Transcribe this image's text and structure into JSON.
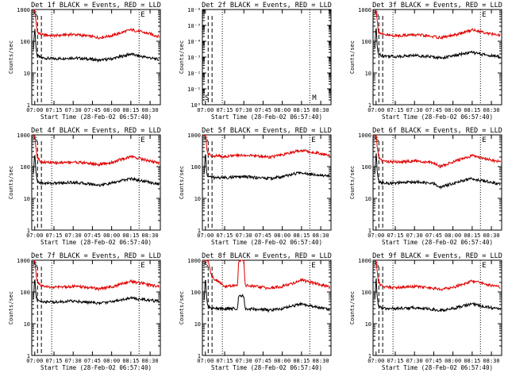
{
  "page": {
    "background": "#ffffff",
    "foreground": "#000000"
  },
  "colors": {
    "events": "#000000",
    "lld": "#e00000"
  },
  "axis": {
    "ylabel": "Counts/sec",
    "xlabel": "Start Time (28-Feb-02 06:57:40)",
    "x_ticks": [
      "07:00",
      "07:15",
      "07:30",
      "07:45",
      "08:00",
      "08:15",
      "08:30"
    ],
    "y_ticks": [
      "1",
      "10",
      "100",
      "1000"
    ],
    "y_ticks_empty": [
      "10⁰",
      "10⁻¹",
      "10⁻²",
      "10⁻³",
      "10⁻⁴",
      "10⁻⁵",
      "10⁻⁶"
    ]
  },
  "markers": {
    "left": "S",
    "right": "E",
    "right_empty": "M"
  },
  "chart_data": [
    {
      "type": "line",
      "title": "Det 1f BLACK = Events, RED = LLD",
      "xlabel": "Start Time (28-Feb-02 06:57:40)",
      "ylabel": "Counts/sec",
      "ylog": true,
      "ylim": [
        1,
        1000
      ],
      "xlim": [
        "06:57:40",
        "08:38"
      ],
      "series": [
        {
          "name": "Events",
          "color": "#000000",
          "x": [
            "06:59",
            "07:00",
            "07:01",
            "07:02",
            "07:05",
            "07:15",
            "07:30",
            "07:45",
            "07:50",
            "08:00",
            "08:10",
            "08:15",
            "08:20",
            "08:30",
            "08:37"
          ],
          "values": [
            60,
            300,
            60,
            35,
            30,
            28,
            30,
            27,
            25,
            28,
            35,
            40,
            35,
            30,
            26
          ]
        },
        {
          "name": "LLD",
          "color": "#e00000",
          "x": [
            "06:59",
            "07:00",
            "07:01",
            "07:02",
            "07:05",
            "07:15",
            "07:30",
            "07:45",
            "07:50",
            "08:00",
            "08:10",
            "08:15",
            "08:20",
            "08:30",
            "08:37"
          ],
          "values": [
            900,
            1000,
            400,
            200,
            160,
            150,
            165,
            140,
            130,
            150,
            200,
            230,
            210,
            170,
            140
          ]
        }
      ]
    },
    {
      "type": "line",
      "title": "Det 2f BLACK = Events, RED = LLD",
      "xlabel": "Start Time (28-Feb-02 06:57:40)",
      "ylabel": "Counts/sec",
      "ylog": true,
      "ylim": [
        1e-06,
        1
      ],
      "xlim": [
        "06:57:40",
        "08:38"
      ],
      "series": []
    },
    {
      "type": "line",
      "title": "Det 3f BLACK = Events, RED = LLD",
      "xlabel": "Start Time (28-Feb-02 06:57:40)",
      "ylabel": "Counts/sec",
      "ylog": true,
      "ylim": [
        1,
        1000
      ],
      "xlim": [
        "06:57:40",
        "08:38"
      ],
      "series": [
        {
          "name": "Events",
          "color": "#000000",
          "x": [
            "06:59",
            "07:00",
            "07:01",
            "07:02",
            "07:05",
            "07:15",
            "07:30",
            "07:45",
            "07:50",
            "08:00",
            "08:10",
            "08:15",
            "08:20",
            "08:30",
            "08:37"
          ],
          "values": [
            60,
            300,
            60,
            40,
            35,
            33,
            36,
            32,
            30,
            34,
            42,
            45,
            40,
            35,
            32
          ]
        },
        {
          "name": "LLD",
          "color": "#e00000",
          "x": [
            "06:59",
            "07:00",
            "07:01",
            "07:02",
            "07:05",
            "07:15",
            "07:30",
            "07:45",
            "07:50",
            "08:00",
            "08:10",
            "08:15",
            "08:20",
            "08:30",
            "08:37"
          ],
          "values": [
            900,
            1000,
            400,
            200,
            160,
            150,
            160,
            140,
            130,
            150,
            200,
            230,
            210,
            170,
            150
          ]
        }
      ]
    },
    {
      "type": "line",
      "title": "Det 4f BLACK = Events, RED = LLD",
      "xlabel": "Start Time (28-Feb-02 06:57:40)",
      "ylabel": "Counts/sec",
      "ylog": true,
      "ylim": [
        1,
        1000
      ],
      "xlim": [
        "06:57:40",
        "08:38"
      ],
      "series": [
        {
          "name": "Events",
          "color": "#000000",
          "x": [
            "06:59",
            "07:00",
            "07:01",
            "07:02",
            "07:05",
            "07:15",
            "07:30",
            "07:45",
            "07:50",
            "08:00",
            "08:10",
            "08:15",
            "08:20",
            "08:30",
            "08:37"
          ],
          "values": [
            60,
            300,
            60,
            35,
            30,
            30,
            32,
            28,
            26,
            30,
            38,
            42,
            38,
            32,
            28
          ]
        },
        {
          "name": "LLD",
          "color": "#e00000",
          "x": [
            "06:59",
            "07:00",
            "07:01",
            "07:02",
            "07:05",
            "07:15",
            "07:30",
            "07:45",
            "07:50",
            "08:00",
            "08:10",
            "08:15",
            "08:20",
            "08:30",
            "08:37"
          ],
          "values": [
            900,
            1000,
            400,
            200,
            140,
            130,
            140,
            125,
            115,
            135,
            180,
            210,
            190,
            150,
            130
          ]
        }
      ]
    },
    {
      "type": "line",
      "title": "Det 5f BLACK = Events, RED = LLD",
      "xlabel": "Start Time (28-Feb-02 06:57:40)",
      "ylabel": "Counts/sec",
      "ylog": true,
      "ylim": [
        1,
        1000
      ],
      "xlim": [
        "06:57:40",
        "08:38"
      ],
      "series": [
        {
          "name": "Events",
          "color": "#000000",
          "x": [
            "06:59",
            "07:00",
            "07:01",
            "07:02",
            "07:05",
            "07:15",
            "07:30",
            "07:45",
            "07:50",
            "08:00",
            "08:10",
            "08:15",
            "08:20",
            "08:30",
            "08:37"
          ],
          "values": [
            60,
            300,
            60,
            50,
            45,
            45,
            48,
            44,
            42,
            48,
            60,
            65,
            60,
            55,
            50
          ]
        },
        {
          "name": "LLD",
          "color": "#e00000",
          "x": [
            "06:59",
            "07:00",
            "07:01",
            "07:02",
            "07:05",
            "07:15",
            "07:30",
            "07:45",
            "07:50",
            "08:00",
            "08:10",
            "08:15",
            "08:20",
            "08:30",
            "08:37"
          ],
          "values": [
            900,
            1000,
            400,
            250,
            220,
            210,
            230,
            210,
            200,
            230,
            300,
            330,
            300,
            260,
            230
          ]
        }
      ]
    },
    {
      "type": "line",
      "title": "Det 6f BLACK = Events, RED = LLD",
      "xlabel": "Start Time (28-Feb-02 06:57:40)",
      "ylabel": "Counts/sec",
      "ylog": true,
      "ylim": [
        1,
        1000
      ],
      "xlim": [
        "06:57:40",
        "08:38"
      ],
      "series": [
        {
          "name": "Events",
          "color": "#000000",
          "x": [
            "06:59",
            "07:00",
            "07:01",
            "07:02",
            "07:05",
            "07:15",
            "07:30",
            "07:45",
            "07:50",
            "08:00",
            "08:10",
            "08:15",
            "08:20",
            "08:30",
            "08:37"
          ],
          "values": [
            60,
            300,
            60,
            35,
            30,
            30,
            33,
            29,
            22,
            30,
            38,
            42,
            38,
            32,
            28
          ]
        },
        {
          "name": "LLD",
          "color": "#e00000",
          "x": [
            "06:59",
            "07:00",
            "07:01",
            "07:02",
            "07:05",
            "07:15",
            "07:30",
            "07:45",
            "07:50",
            "08:00",
            "08:10",
            "08:15",
            "08:20",
            "08:30",
            "08:37"
          ],
          "values": [
            900,
            1000,
            400,
            200,
            150,
            140,
            150,
            130,
            100,
            140,
            190,
            220,
            200,
            160,
            140
          ]
        }
      ]
    },
    {
      "type": "line",
      "title": "Det 7f BLACK = Events, RED = LLD",
      "xlabel": "Start Time (28-Feb-02 06:57:40)",
      "ylabel": "Counts/sec",
      "ylog": true,
      "ylim": [
        1,
        1000
      ],
      "xlim": [
        "06:57:40",
        "08:38"
      ],
      "series": [
        {
          "name": "Events",
          "color": "#000000",
          "x": [
            "06:59",
            "07:00",
            "07:01",
            "07:02",
            "07:05",
            "07:15",
            "07:30",
            "07:45",
            "07:50",
            "08:00",
            "08:10",
            "08:15",
            "08:20",
            "08:30",
            "08:37"
          ],
          "values": [
            60,
            300,
            80,
            55,
            50,
            48,
            52,
            46,
            44,
            50,
            60,
            65,
            60,
            55,
            50
          ]
        },
        {
          "name": "LLD",
          "color": "#e00000",
          "x": [
            "06:59",
            "07:00",
            "07:01",
            "07:02",
            "07:05",
            "07:15",
            "07:30",
            "07:45",
            "07:50",
            "08:00",
            "08:10",
            "08:15",
            "08:20",
            "08:30",
            "08:37"
          ],
          "values": [
            900,
            1000,
            400,
            200,
            150,
            140,
            150,
            135,
            125,
            145,
            190,
            220,
            200,
            165,
            145
          ]
        }
      ]
    },
    {
      "type": "line",
      "title": "Det 8f BLACK = Events, RED = LLD",
      "xlabel": "Start Time (28-Feb-02 06:57:40)",
      "ylabel": "Counts/sec",
      "ylog": true,
      "ylim": [
        1,
        1000
      ],
      "xlim": [
        "06:57:40",
        "08:38"
      ],
      "series": [
        {
          "name": "Events",
          "color": "#000000",
          "x": [
            "06:59",
            "07:00",
            "07:01",
            "07:02",
            "07:05",
            "07:15",
            "07:25",
            "07:26",
            "07:30",
            "07:31",
            "07:45",
            "07:50",
            "08:00",
            "08:10",
            "08:15",
            "08:20",
            "08:30",
            "08:37"
          ],
          "values": [
            60,
            300,
            60,
            35,
            30,
            30,
            30,
            80,
            75,
            30,
            28,
            26,
            30,
            38,
            42,
            38,
            32,
            28
          ]
        },
        {
          "name": "LLD",
          "color": "#e00000",
          "x": [
            "06:59",
            "07:00",
            "07:01",
            "07:02",
            "07:05",
            "07:15",
            "07:25",
            "07:26",
            "07:30",
            "07:31",
            "07:45",
            "07:50",
            "08:00",
            "08:10",
            "08:15",
            "08:20",
            "08:30",
            "08:37"
          ],
          "values": [
            900,
            1000,
            1000,
            1000,
            300,
            150,
            160,
            1000,
            1000,
            160,
            140,
            130,
            150,
            200,
            240,
            210,
            170,
            140
          ]
        }
      ]
    },
    {
      "type": "line",
      "title": "Det 9f BLACK = Events, RED = LLD",
      "xlabel": "Start Time (28-Feb-02 06:57:40)",
      "ylabel": "Counts/sec",
      "ylog": true,
      "ylim": [
        1,
        1000
      ],
      "xlim": [
        "06:57:40",
        "08:38"
      ],
      "series": [
        {
          "name": "Events",
          "color": "#000000",
          "x": [
            "06:59",
            "07:00",
            "07:01",
            "07:02",
            "07:05",
            "07:15",
            "07:30",
            "07:45",
            "07:50",
            "08:00",
            "08:10",
            "08:15",
            "08:20",
            "08:30",
            "08:37"
          ],
          "values": [
            60,
            300,
            60,
            35,
            30,
            30,
            32,
            28,
            26,
            30,
            38,
            42,
            38,
            32,
            28
          ]
        },
        {
          "name": "LLD",
          "color": "#e00000",
          "x": [
            "06:59",
            "07:00",
            "07:01",
            "07:02",
            "07:05",
            "07:15",
            "07:30",
            "07:45",
            "07:50",
            "08:00",
            "08:10",
            "08:15",
            "08:20",
            "08:30",
            "08:37"
          ],
          "values": [
            900,
            1000,
            400,
            200,
            150,
            140,
            150,
            130,
            120,
            140,
            190,
            220,
            200,
            160,
            140
          ]
        }
      ]
    }
  ]
}
